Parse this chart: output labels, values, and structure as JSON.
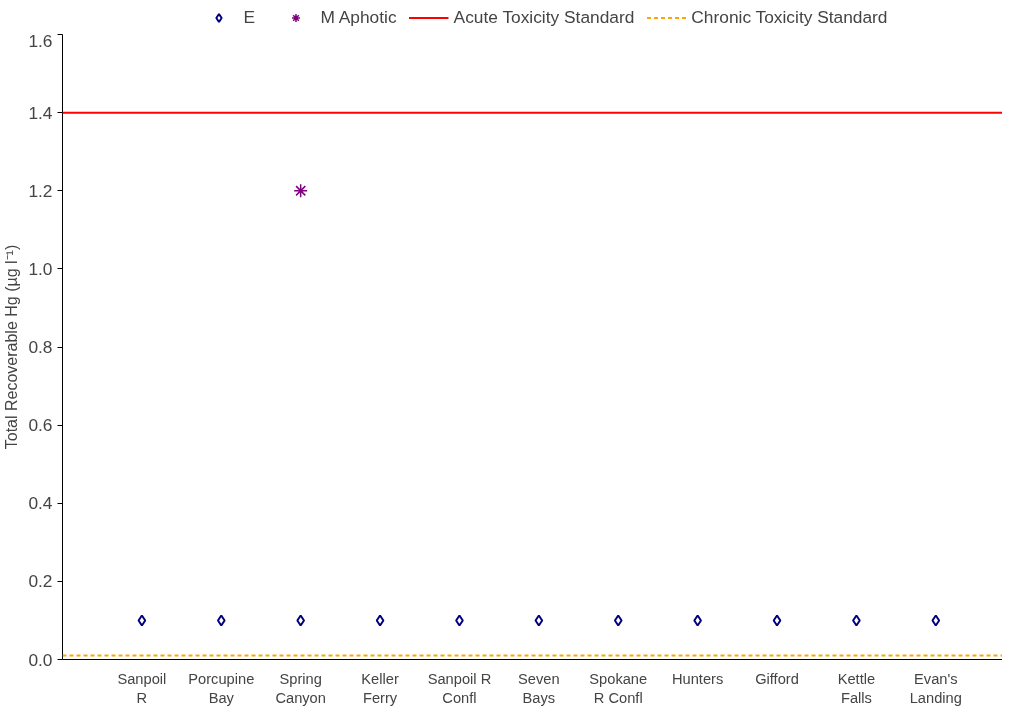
{
  "chart_data": {
    "type": "scatter",
    "ylabel": "Total Recoverable Hg (µg l⁻¹)",
    "categories": [
      "Sanpoil\nR",
      "Porcupine\nBay",
      "Spring\nCanyon",
      "Keller\nFerry",
      "Sanpoil R\nConfl",
      "Seven\nBays",
      "Spokane\nR Confl",
      "Hunters",
      "Gifford",
      "Kettle\nFalls",
      "Evan's\nLanding"
    ],
    "series": [
      {
        "name": "E",
        "color": "#000080",
        "marker": "diamond",
        "values": [
          0.1,
          0.1,
          0.1,
          0.1,
          0.1,
          0.1,
          0.1,
          0.1,
          0.1,
          0.1,
          0.1
        ]
      },
      {
        "name": "M Aphotic",
        "color": "#800080",
        "marker": "cross",
        "values": [
          null,
          null,
          1.2,
          null,
          null,
          null,
          null,
          null,
          null,
          null,
          null
        ]
      }
    ],
    "ref_lines": [
      {
        "axis": "y",
        "value": 1.4,
        "label": "Acute Toxicity Standard",
        "color": "#ff0000",
        "line_style": "solid"
      },
      {
        "axis": "y",
        "value": 0.01,
        "label": "Chronic Toxicity Standard",
        "color": "#ffa500",
        "line_style": "dashed"
      }
    ],
    "ylim": [
      0,
      1.6
    ],
    "yticks": [
      {
        "value": 0,
        "label": "0.0"
      },
      {
        "value": 0.2,
        "label": "0.2"
      },
      {
        "value": 0.4,
        "label": "0.4"
      },
      {
        "value": 0.6,
        "label": "0.6"
      },
      {
        "value": 0.8,
        "label": "0.8"
      },
      {
        "value": 1.0,
        "label": "1.0"
      },
      {
        "value": 1.2,
        "label": "1.2"
      },
      {
        "value": 1.4,
        "label": "1.4"
      },
      {
        "value": 1.6,
        "label": "1.6"
      }
    ],
    "grid": false,
    "legend": "top"
  }
}
